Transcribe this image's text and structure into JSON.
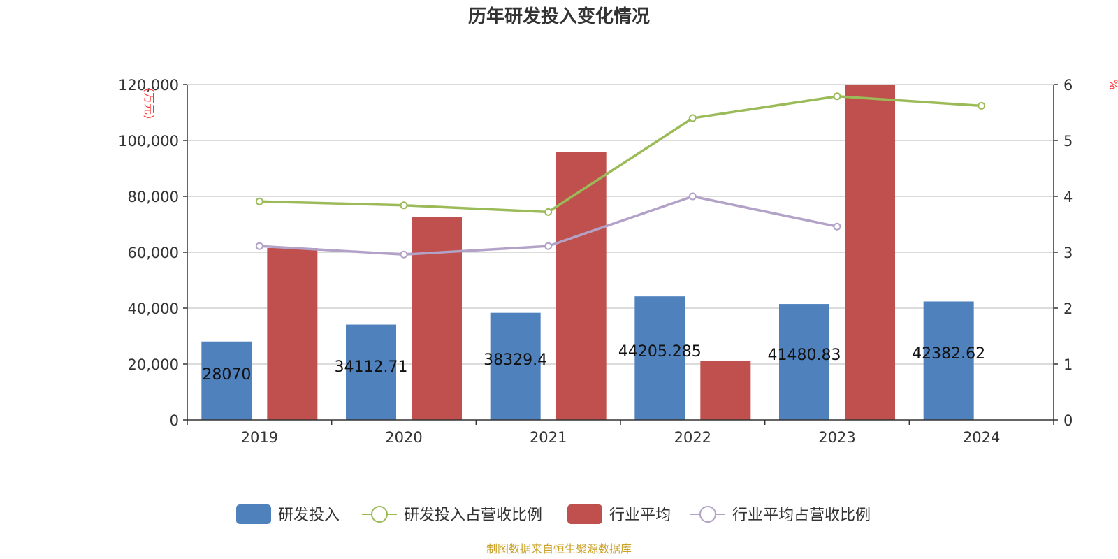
{
  "chart_data": {
    "type": "bar",
    "title": "历年研发投入变化情况",
    "categories": [
      "2019",
      "2020",
      "2021",
      "2022",
      "2023",
      "2024"
    ],
    "y_left": {
      "unit": "(万元)",
      "ticks": [
        "0",
        "20,000",
        "40,000",
        "60,000",
        "80,000",
        "100,000",
        "120,000"
      ],
      "ylim": [
        0,
        120000
      ]
    },
    "y_right": {
      "unit": "%",
      "ticks": [
        "0",
        "1",
        "2",
        "3",
        "4",
        "5",
        "6"
      ],
      "ylim": [
        0,
        6
      ]
    },
    "series": [
      {
        "name": "研发投入",
        "kind": "bar",
        "axis": "left",
        "color": "#4f81bd",
        "values": [
          28070,
          34112.71,
          38329.4,
          44205.285,
          41480.83,
          42382.62
        ],
        "labels": [
          "28070",
          "34112.71",
          "38329.4",
          "44205.285",
          "41480.83",
          "42382.62"
        ]
      },
      {
        "name": "研发投入占营收比例",
        "kind": "line",
        "axis": "right",
        "color": "#9bbb59",
        "values": [
          3.91,
          3.84,
          3.72,
          5.4,
          5.79,
          5.62
        ]
      },
      {
        "name": "行业平均",
        "kind": "bar",
        "axis": "left",
        "color": "#c0504d",
        "values": [
          61500,
          72500,
          96000,
          21000,
          120000,
          null
        ]
      },
      {
        "name": "行业平均占营收比例",
        "kind": "line",
        "axis": "right",
        "color": "#b3a2c7",
        "values": [
          3.11,
          2.96,
          3.11,
          4.0,
          3.46,
          null
        ]
      }
    ],
    "grid": true,
    "legend_position": "bottom"
  },
  "source_text": "制图数据来自恒生聚源数据库"
}
